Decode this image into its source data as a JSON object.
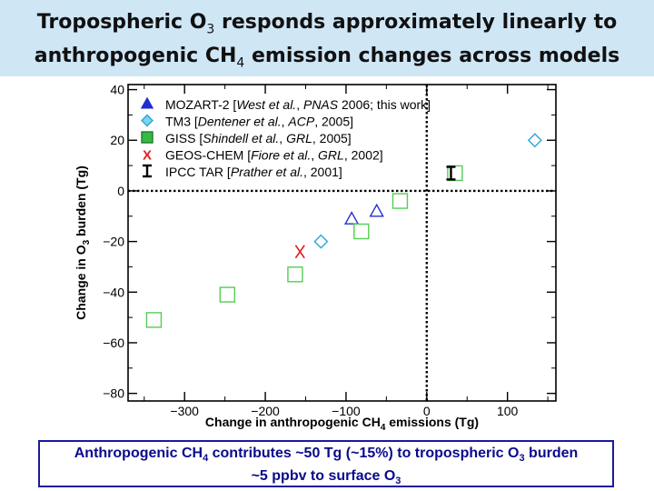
{
  "slide": {
    "title_line1_pre": "Tropospheric O",
    "title_line1_sub": "3",
    "title_line1_post": " responds approximately linearly to",
    "title_line2_pre": "anthropogenic CH",
    "title_line2_sub": "4",
    "title_line2_post": " emission changes across models",
    "background_color": "#cfe6f5"
  },
  "conclusion": {
    "line1_a": "Anthropogenic CH",
    "line1_sub1": "4",
    "line1_b": " contributes ~50 Tg (~15%) to tropospheric O",
    "line1_sub2": "3",
    "line1_c": " burden",
    "line2_a": "~5 ppbv to surface O",
    "line2_sub": "3",
    "text_color": "#0a0a8c"
  },
  "chart_data": {
    "type": "scatter",
    "xlabel_pre": "Change in anthropogenic CH",
    "xlabel_sub": "4",
    "xlabel_post": " emissions (Tg)",
    "ylabel_pre": "Change in O",
    "ylabel_sub": "3",
    "ylabel_post": " burden (Tg)",
    "xlim": [
      -370,
      160
    ],
    "ylim": [
      -83,
      42
    ],
    "xticks": [
      -300,
      -200,
      -100,
      0,
      100
    ],
    "yticks": [
      -80,
      -60,
      -40,
      -20,
      0,
      20,
      40
    ],
    "xtick_labels": [
      "−300",
      "−200",
      "−100",
      "0",
      "100"
    ],
    "ytick_labels": [
      "−80",
      "−60",
      "−40",
      "−20",
      "0",
      "20",
      "40"
    ],
    "zero_lines": true,
    "legend_position": "top-left",
    "series": [
      {
        "name": "MOZART-2 [West et al., PNAS 2006; this work]",
        "legend_parts": [
          {
            "t": "MOZART-2 [",
            "i": false
          },
          {
            "t": "West et al.",
            "i": true
          },
          {
            "t": ", ",
            "i": false
          },
          {
            "t": "PNAS",
            "i": true
          },
          {
            "t": " 2006; this work]",
            "i": false
          }
        ],
        "marker": "triangle",
        "color": "#1f2fd0",
        "legend_fill": "#1f2fd0",
        "points": [
          [
            -93,
            -11
          ],
          [
            -62,
            -8
          ]
        ]
      },
      {
        "name": "TM3 [Dentener et al., ACP, 2005]",
        "legend_parts": [
          {
            "t": "TM3 [",
            "i": false
          },
          {
            "t": "Dentener et al.",
            "i": true
          },
          {
            "t": ", ",
            "i": false
          },
          {
            "t": "ACP",
            "i": true
          },
          {
            "t": ", 2005]",
            "i": false
          }
        ],
        "marker": "diamond",
        "color": "#2aa6d8",
        "legend_fill": "#7ad4f0",
        "points": [
          [
            -131,
            -20
          ],
          [
            134,
            20
          ]
        ]
      },
      {
        "name": "GISS [Shindell et al., GRL, 2005]",
        "legend_parts": [
          {
            "t": "GISS [",
            "i": false
          },
          {
            "t": "Shindell et al.",
            "i": true
          },
          {
            "t": ", ",
            "i": false
          },
          {
            "t": "GRL",
            "i": true
          },
          {
            "t": ", 2005]",
            "i": false
          }
        ],
        "marker": "square",
        "color": "#55cc55",
        "legend_fill": "#33bb44",
        "points": [
          [
            -338,
            -51
          ],
          [
            -247,
            -41
          ],
          [
            -163,
            -33
          ],
          [
            -81,
            -16
          ],
          [
            -33,
            -4
          ],
          [
            35,
            7
          ]
        ]
      },
      {
        "name": "GEOS-CHEM [Fiore et al., GRL, 2002]",
        "legend_parts": [
          {
            "t": "GEOS-CHEM [",
            "i": false
          },
          {
            "t": "Fiore et al.",
            "i": true
          },
          {
            "t": ", ",
            "i": false
          },
          {
            "t": "GRL",
            "i": true
          },
          {
            "t": ", 2002]",
            "i": false
          }
        ],
        "marker": "x",
        "color": "#e02020",
        "legend_fill": "#e02020",
        "points": [
          [
            -157,
            -24
          ]
        ]
      },
      {
        "name": "IPCC TAR [Prather et al., 2001]",
        "legend_parts": [
          {
            "t": "IPCC TAR [",
            "i": false
          },
          {
            "t": "Prather et al.",
            "i": true
          },
          {
            "t": ", 2001]",
            "i": false
          }
        ],
        "marker": "ibar",
        "color": "#000000",
        "legend_fill": "#000000",
        "points": [
          [
            30,
            7
          ]
        ],
        "error": 2.5
      }
    ]
  }
}
